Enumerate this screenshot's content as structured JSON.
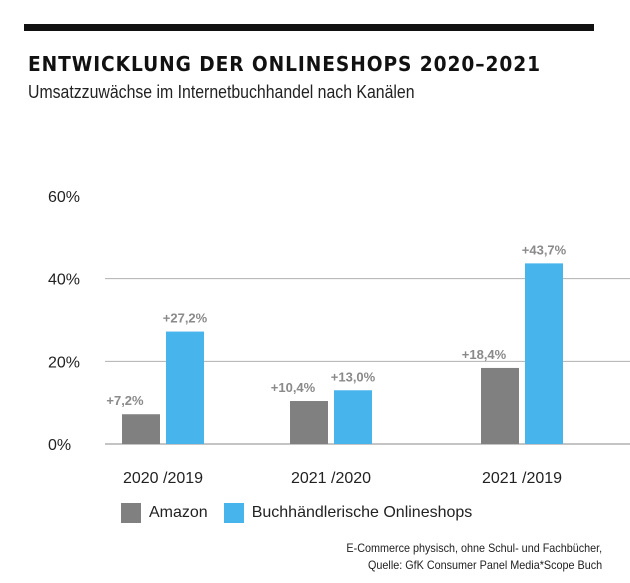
{
  "chart_data": {
    "type": "bar",
    "title": "ENTWICKLUNG DER ONLINESHOPS 2020–2021",
    "subtitle": "Umsatzzuwächse im Internetbuchhandel nach Kanälen",
    "categories": [
      "2020 /2019",
      "2021 /2020",
      "2021 /2019"
    ],
    "series": [
      {
        "name": "Amazon",
        "color": "#808080",
        "values": [
          7.2,
          10.4,
          18.4
        ],
        "labels": [
          "+7,2%",
          "+10,4%",
          "+18,4%"
        ]
      },
      {
        "name": "Buchhändlerische Onlineshops",
        "color": "#48b4ec",
        "values": [
          27.2,
          13.0,
          43.7
        ],
        "labels": [
          "+27,2%",
          "+13,0%",
          "+43,7%"
        ]
      }
    ],
    "yticks": [
      0,
      20,
      40,
      60
    ],
    "ytick_labels": [
      "0%",
      "20%",
      "40%",
      "60%"
    ],
    "ylim": [
      0,
      60
    ],
    "xlabel": "",
    "ylabel": "",
    "grid": true,
    "legend": "bottom-left"
  },
  "source": {
    "line1": "E-Commerce physisch, ohne Schul- und Fachbücher,",
    "line2": "Quelle: GfK Consumer Panel Media*Scope Buch"
  }
}
